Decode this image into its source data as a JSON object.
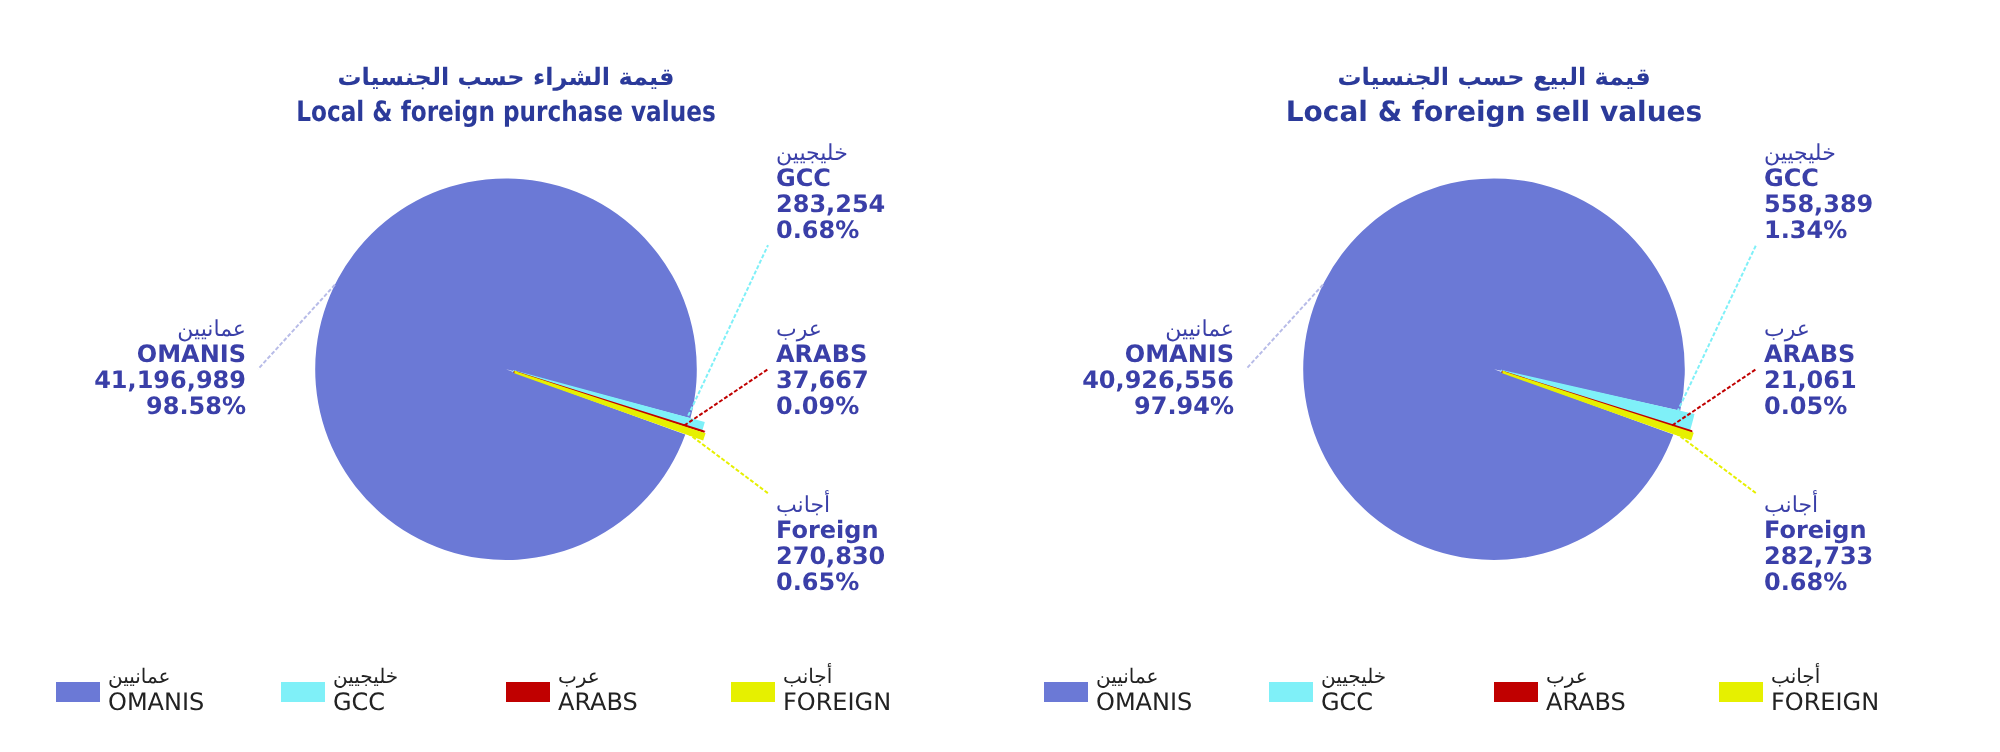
{
  "chart_data": [
    {
      "type": "pie",
      "title": "قيمة الشراء حسب الجنسيات",
      "subtitle": "Local & foreign purchase values",
      "categories": [
        "عمانيين\nOMANIS",
        "خليجيين\nGCC",
        "عرب\nARABS",
        "أجانب\nFOREIGN"
      ],
      "values": [
        41196989,
        283254,
        37667,
        270830
      ],
      "colors": [
        "#6b79d6",
        "#7ff0f8",
        "#c00000",
        "#e6f000"
      ],
      "value_labels": [
        "عمانيين\nOMANIS\n41,196,989\n98.58%",
        "خليجيين\nGCC\n283,254\n0.68%",
        "عرب\nARABS\n37,667\n0.09%",
        "أجانب\nForeign\n270,830\n0.65%"
      ],
      "legend": "bottom"
    },
    {
      "type": "pie",
      "title": "قيمة البيع حسب الجنسيات",
      "subtitle": "Local & foreign sell values",
      "categories": [
        "عمانيين\nOMANIS",
        "خليجيين\nGCC",
        "عرب\nARABS",
        "أجانب\nFOREIGN"
      ],
      "values": [
        40926556,
        558389,
        21061,
        282733
      ],
      "colors": [
        "#6b79d6",
        "#7ff0f8",
        "#c00000",
        "#e6f000"
      ],
      "value_labels": [
        "عمانيين\nOMANIS\n40,926,556\n97.94%",
        "خليجيين\nGCC\n558,389\n1.34%",
        "عرب\nARABS\n21,061\n0.05%",
        "أجانب\nForeign\n282,733\n0.68%"
      ],
      "legend": "bottom"
    }
  ]
}
